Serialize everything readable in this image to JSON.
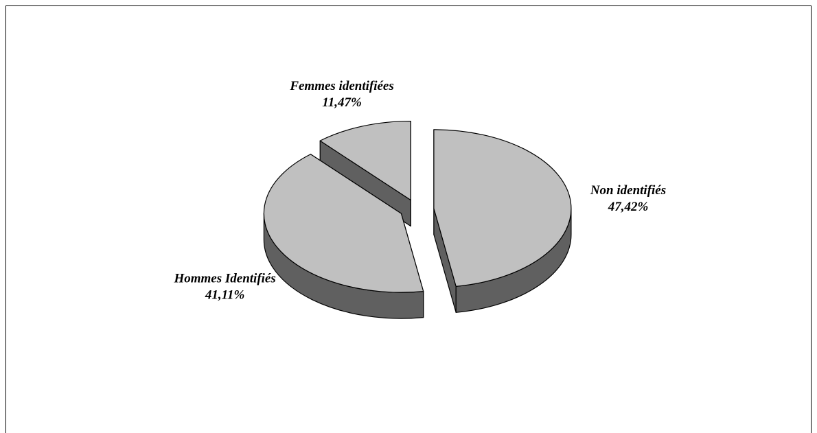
{
  "chart_data": {
    "type": "pie",
    "categories": [
      "Non identifiés",
      "Hommes Identifiés",
      "Femmes identifiées"
    ],
    "values": [
      47.42,
      41.11,
      11.47
    ],
    "value_labels": [
      "47,42%",
      "41,11%",
      "11,47%"
    ],
    "color": "#c0c0c0",
    "side_color": "#606060"
  }
}
